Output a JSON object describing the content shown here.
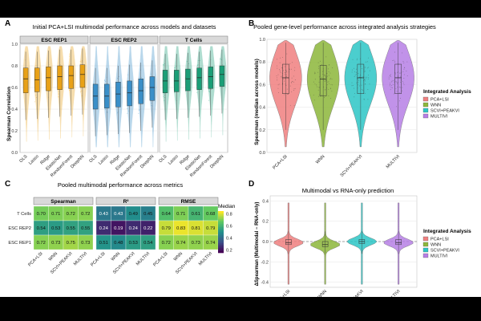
{
  "colors": {
    "esc_rep1": "#E8A117",
    "esc_rep2": "#3A8FC8",
    "tcells": "#1B9E77",
    "pca_lsi": "#F08080",
    "wnn": "#8DB73A",
    "scvi_peakvi": "#2CC6C6",
    "multivi": "#B77FE6"
  },
  "panels": {
    "A": {
      "letter": "A",
      "title": "Initial PCA+LSI multimodal performance across models and datasets"
    },
    "B": {
      "letter": "B",
      "title": "Pooled gene-level performance across integrated analysis strategies"
    },
    "C": {
      "letter": "C",
      "title": "Pooled multimodal performance across metrics"
    },
    "D": {
      "letter": "D",
      "title": "Multimodal vs RNA-only prediction"
    }
  },
  "chart_data": [
    {
      "id": "A",
      "type": "violin-box",
      "title": "Initial PCA+LSI multimodal performance across models and datasets",
      "ylabel": "Spearman Correlation",
      "ylim": [
        0,
        1.0
      ],
      "yticks": [
        "0.0",
        "0.2",
        "0.4",
        "0.6",
        "0.8",
        "1.0"
      ],
      "facets": [
        "ESC REP1",
        "ESC REP2",
        "T Cells"
      ],
      "categories": [
        "OLS",
        "Lasso",
        "Ridge",
        "ElasticNet",
        "RandomForest",
        "DeepNN"
      ],
      "series": [
        {
          "name": "ESC REP1",
          "medians": [
            0.68,
            0.67,
            0.69,
            0.7,
            0.71,
            0.72
          ],
          "q1": [
            0.55,
            0.56,
            0.57,
            0.58,
            0.59,
            0.6
          ],
          "q3": [
            0.78,
            0.78,
            0.79,
            0.8,
            0.8,
            0.81
          ]
        },
        {
          "name": "ESC REP2",
          "medians": [
            0.52,
            0.52,
            0.54,
            0.55,
            0.57,
            0.6
          ],
          "q1": [
            0.4,
            0.41,
            0.42,
            0.43,
            0.45,
            0.48
          ],
          "q3": [
            0.63,
            0.63,
            0.65,
            0.66,
            0.68,
            0.7
          ]
        },
        {
          "name": "T Cells",
          "medians": [
            0.66,
            0.66,
            0.68,
            0.69,
            0.7,
            0.72
          ],
          "q1": [
            0.55,
            0.56,
            0.57,
            0.58,
            0.59,
            0.61
          ],
          "q3": [
            0.76,
            0.76,
            0.77,
            0.78,
            0.79,
            0.8
          ]
        }
      ]
    },
    {
      "id": "B",
      "type": "violin-box",
      "title": "Pooled gene-level performance across integrated analysis strategies",
      "ylabel": "Spearman (median across models)",
      "ylim": [
        0,
        1.0
      ],
      "yticks": [
        "0.0",
        "0.2",
        "0.4",
        "0.6",
        "0.8",
        "1.0"
      ],
      "categories": [
        "PCA+LSI",
        "WNN",
        "SCVI+PEAKVI",
        "MULTIVI"
      ],
      "medians": [
        0.66,
        0.65,
        0.66,
        0.66
      ],
      "q1": [
        0.52,
        0.5,
        0.52,
        0.52
      ],
      "q3": [
        0.78,
        0.77,
        0.78,
        0.78
      ],
      "legend_title": "Integrated Analysis",
      "legend": [
        "PCA+LSI",
        "WNN",
        "SCVI+PEAKVI",
        "MULTIVI"
      ]
    },
    {
      "id": "C",
      "type": "heatmap",
      "title": "Pooled multimodal performance across metrics",
      "facets": [
        "Spearman",
        "R²",
        "RMSE"
      ],
      "rows": [
        "T Cells",
        "ESC REP2",
        "ESC REP1"
      ],
      "columns": [
        "PCA+LSI",
        "WNN",
        "SCVI+PEAKVI",
        "MULTIVI"
      ],
      "values": {
        "Spearman": [
          [
            "0.70",
            "0.71",
            "0.72",
            "0.72"
          ],
          [
            "0.54",
            "0.53",
            "0.55",
            "0.55"
          ],
          [
            "0.72",
            "0.73",
            "0.75",
            "0.73"
          ]
        ],
        "R²": [
          [
            "0.43",
            "0.43",
            "0.49",
            "0.45"
          ],
          [
            "0.24",
            "0.19",
            "0.24",
            "0.22"
          ],
          [
            "0.51",
            "0.48",
            "0.53",
            "0.54"
          ]
        ],
        "RMSE": [
          [
            "0.64",
            "0.71",
            "0.61",
            "0.68"
          ],
          [
            "0.79",
            "0.83",
            "0.81",
            "0.79"
          ],
          [
            "0.72",
            "0.74",
            "0.73",
            "0.74"
          ]
        ]
      },
      "legend_title": "Median",
      "legend_ticks": [
        "0.8",
        "0.6",
        "0.4",
        "0.2"
      ]
    },
    {
      "id": "D",
      "type": "violin-box",
      "title": "Multimodal vs RNA-only prediction",
      "ylabel": "ΔSpearman (Multimodal − RNA-only)",
      "ylim": [
        -0.45,
        0.45
      ],
      "yticks": [
        "-0.4",
        "-0.2",
        "0.0",
        "0.2",
        "0.4"
      ],
      "categories": [
        "PCA+LSI",
        "WNN",
        "SCVI+PEAKVI",
        "MULTIVI"
      ],
      "medians": [
        -0.01,
        -0.03,
        0.0,
        -0.01
      ],
      "q1": [
        -0.03,
        -0.05,
        -0.02,
        -0.03
      ],
      "q3": [
        0.02,
        0.0,
        0.02,
        0.02
      ],
      "legend_title": "Integrated Analysis",
      "legend": [
        "PCA+LSI",
        "WNN",
        "SCVI+PEAKVI",
        "MULTIVI"
      ]
    }
  ]
}
